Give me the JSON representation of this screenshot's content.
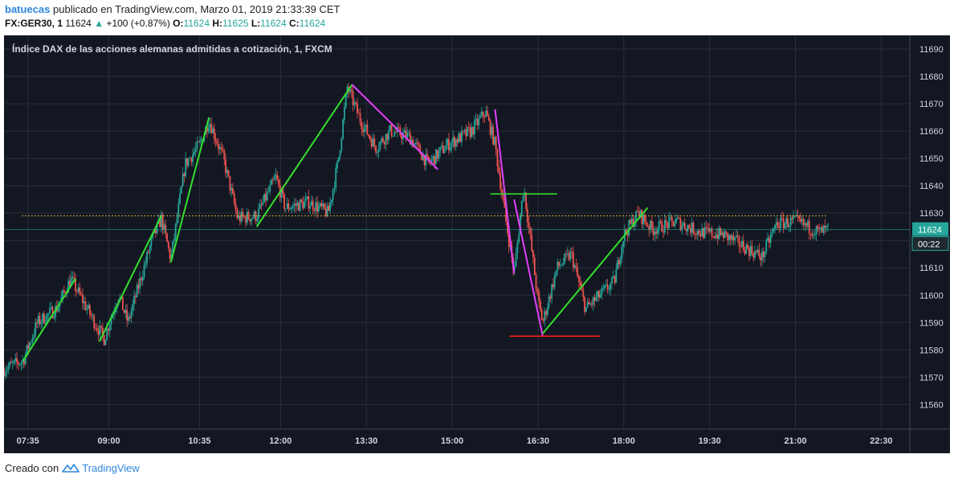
{
  "header": {
    "author": "batuecas",
    "published_text": "publicado en TradingView.com, Marzo 01, 2019 21:33:39 CET",
    "symbol": "FX:GER30, 1",
    "last_price": "11624",
    "change": "+100 (+0.87%)",
    "o_label": "O:",
    "o_value": "11624",
    "h_label": "H:",
    "h_value": "11625",
    "l_label": "L:",
    "l_value": "11624",
    "c_label": "C:",
    "c_value": "11624"
  },
  "footer": {
    "created_with": "Creado con",
    "brand": "TradingView"
  },
  "colors": {
    "background": "#131722",
    "grid": "#2a2e39",
    "axis_text": "#d1d4dc",
    "candle_up": "#26a69a",
    "candle_down": "#ef5350",
    "wave_green": "#35e02e",
    "wave_magenta": "#e040fb",
    "level_red": "#ff1a1a",
    "prev_close": "#d4b03a",
    "last_price_badge": "#26a69a"
  },
  "chart_data": {
    "type": "candlestick",
    "title": "Índice DAX de las acciones alemanas admitidas a cotización, 1, FXCM",
    "ylim": [
      11551,
      11695
    ],
    "y_ticks": [
      11560,
      11570,
      11580,
      11590,
      11600,
      11610,
      11620,
      11630,
      11640,
      11650,
      11660,
      11670,
      11680,
      11690
    ],
    "x_domain": [
      "07:10",
      "23:00"
    ],
    "x_ticks": [
      {
        "label": "07:35",
        "value": "07:35"
      },
      {
        "label": "09:00",
        "value": "09:00"
      },
      {
        "label": "10:35",
        "value": "10:35"
      },
      {
        "label": "12:00",
        "value": "12:00"
      },
      {
        "label": "13:30",
        "value": "13:30"
      },
      {
        "label": "15:00",
        "value": "15:00"
      },
      {
        "label": "16:30",
        "value": "16:30"
      },
      {
        "label": "18:00",
        "value": "18:00"
      },
      {
        "label": "19:30",
        "value": "19:30"
      },
      {
        "label": "21:00",
        "value": "21:00"
      },
      {
        "label": "22:30",
        "value": "22:30"
      }
    ],
    "price_path": [
      [
        "07:10",
        11573
      ],
      [
        "07:30",
        11576
      ],
      [
        "07:45",
        11590
      ],
      [
        "08:05",
        11595
      ],
      [
        "08:20",
        11606
      ],
      [
        "08:45",
        11590
      ],
      [
        "08:55",
        11584
      ],
      [
        "09:10",
        11600
      ],
      [
        "09:20",
        11590
      ],
      [
        "09:45",
        11620
      ],
      [
        "09:55",
        11628
      ],
      [
        "10:05",
        11613
      ],
      [
        "10:20",
        11648
      ],
      [
        "10:35",
        11655
      ],
      [
        "10:45",
        11664
      ],
      [
        "11:00",
        11650
      ],
      [
        "11:15",
        11628
      ],
      [
        "11:35",
        11629
      ],
      [
        "11:55",
        11643
      ],
      [
        "12:05",
        11632
      ],
      [
        "12:30",
        11634
      ],
      [
        "12:50",
        11630
      ],
      [
        "13:00",
        11648
      ],
      [
        "13:10",
        11676
      ],
      [
        "13:25",
        11663
      ],
      [
        "13:40",
        11654
      ],
      [
        "13:55",
        11660
      ],
      [
        "14:15",
        11658
      ],
      [
        "14:35",
        11648
      ],
      [
        "14:55",
        11655
      ],
      [
        "15:20",
        11660
      ],
      [
        "15:35",
        11667
      ],
      [
        "15:45",
        11655
      ],
      [
        "15:55",
        11630
      ],
      [
        "16:05",
        11608
      ],
      [
        "16:15",
        11640
      ],
      [
        "16:30",
        11598
      ],
      [
        "16:35",
        11590
      ],
      [
        "16:50",
        11610
      ],
      [
        "17:05",
        11615
      ],
      [
        "17:20",
        11595
      ],
      [
        "17:35",
        11600
      ],
      [
        "17:50",
        11605
      ],
      [
        "18:00",
        11622
      ],
      [
        "18:15",
        11630
      ],
      [
        "18:30",
        11624
      ],
      [
        "18:55",
        11627
      ],
      [
        "19:20",
        11623
      ],
      [
        "19:45",
        11622
      ],
      [
        "20:05",
        11618
      ],
      [
        "20:25",
        11614
      ],
      [
        "20:40",
        11626
      ],
      [
        "21:00",
        11627
      ],
      [
        "21:25",
        11623
      ],
      [
        "21:35",
        11624
      ]
    ],
    "wave_lines": [
      {
        "color": "green",
        "points": [
          [
            "07:30",
            11576
          ],
          [
            "08:25",
            11606
          ]
        ]
      },
      {
        "color": "green",
        "points": [
          [
            "08:50",
            11583
          ],
          [
            "09:55",
            11629
          ]
        ]
      },
      {
        "color": "green",
        "points": [
          [
            "10:05",
            11612
          ],
          [
            "10:45",
            11665
          ]
        ]
      },
      {
        "color": "green",
        "points": [
          [
            "11:35",
            11625
          ],
          [
            "13:15",
            11677
          ]
        ]
      },
      {
        "color": "magenta",
        "points": [
          [
            "13:15",
            11677
          ],
          [
            "14:45",
            11646
          ]
        ]
      },
      {
        "color": "magenta",
        "points": [
          [
            "15:45",
            11668
          ],
          [
            "16:05",
            11608
          ]
        ]
      },
      {
        "color": "magenta",
        "points": [
          [
            "16:05",
            11635
          ],
          [
            "16:35",
            11585
          ]
        ]
      },
      {
        "color": "green",
        "points": [
          [
            "16:35",
            11586
          ],
          [
            "18:25",
            11632
          ]
        ]
      }
    ],
    "horizontal_levels": [
      {
        "color": "green",
        "y": 11637,
        "x": [
          "15:40",
          "16:50"
        ]
      },
      {
        "color": "red",
        "y": 11585,
        "x": [
          "16:00",
          "17:35"
        ]
      }
    ],
    "prev_close": 11629,
    "last_price": 11624,
    "last_price_label": "11624",
    "countdown_label": "00:22"
  }
}
